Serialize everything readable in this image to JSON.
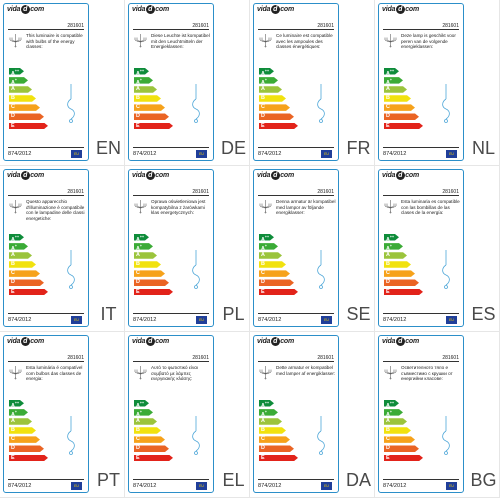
{
  "common": {
    "brand_pre": "vida",
    "brand_d": "d",
    "brand_post": "com",
    "code": "281601",
    "regulation": "874/2012",
    "eu_flag": "EU",
    "lamp_icon": "chandelier-icon",
    "hook_icon": "lamp-hook-icon"
  },
  "classes": [
    {
      "letter": "A",
      "sup": "++",
      "color": "#0e8c3a",
      "width": 13
    },
    {
      "letter": "A",
      "sup": "+",
      "color": "#3bab36",
      "width": 17
    },
    {
      "letter": "A",
      "sup": "",
      "color": "#9bc43c",
      "width": 21
    },
    {
      "letter": "B",
      "sup": "",
      "color": "#f1e20e",
      "width": 25
    },
    {
      "letter": "C",
      "sup": "",
      "color": "#f6a21b",
      "width": 29
    },
    {
      "letter": "D",
      "sup": "",
      "color": "#ea6424",
      "width": 33
    },
    {
      "letter": "E",
      "sup": "",
      "color": "#e2231a",
      "width": 37
    }
  ],
  "panels": [
    {
      "lang": "EN",
      "text": "This luminaire is compatible with bulbs of the energy classes:"
    },
    {
      "lang": "DE",
      "text": "Diese Leuchte ist kompatibel mit den Leuchtmitteln der Energieklassen:"
    },
    {
      "lang": "FR",
      "text": "Ce luminaire est compatible avec les ampoules des classes énergétiques:"
    },
    {
      "lang": "NL",
      "text": "Deze lamp is geschikt voor peren van de volgende energieklassen:"
    },
    {
      "lang": "IT",
      "text": "Questo apparecchio d'illuminazione è compatibile con le lampadine delle classi energetiche:"
    },
    {
      "lang": "PL",
      "text": "Oprawa oświetleniowa jest kompatybilna z żarówkami klas energetycznych:"
    },
    {
      "lang": "SE",
      "text": "Denna armatur är kompatibel med lampor av följande energiklasser:"
    },
    {
      "lang": "ES",
      "text": "Esta luminaria es compatible con las bombillas de las clases de la energía:"
    },
    {
      "lang": "PT",
      "text": "Esta luminária é compatível com bulbos das classes de energia:"
    },
    {
      "lang": "EL",
      "text": "Αυτό το φωτιστικό είναι συμβατό με λάμπες ενεργειακής κλάσης:"
    },
    {
      "lang": "DA",
      "text": "Dette armatur er kompatibel med lamper af energiklasser:"
    },
    {
      "lang": "BG",
      "text": "Осветителното тяло е съвместимо с крушки от енергийни класове:"
    }
  ]
}
